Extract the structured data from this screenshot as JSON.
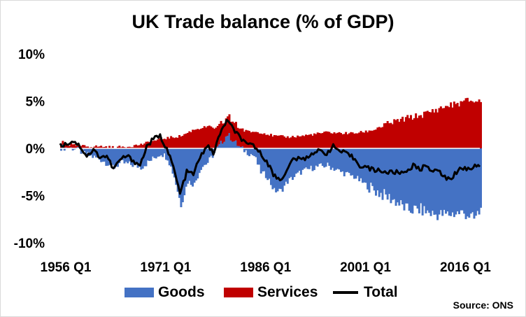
{
  "chart_data": {
    "type": "bar+line",
    "title": "UK Trade balance (% of GDP)",
    "source": "Source: ONS",
    "ylim": [
      -10,
      10
    ],
    "y_ticks": [
      10,
      5,
      0,
      -5,
      -10
    ],
    "y_tick_labels": [
      "10%",
      "5%",
      "0%",
      "-5%",
      "-10%"
    ],
    "x_range": [
      1956,
      2019
    ],
    "x_ticks": [
      1956,
      1971,
      1986,
      2001,
      2016
    ],
    "x_tick_labels": [
      "1956 Q1",
      "1971 Q1",
      "1986 Q1",
      "2001 Q1",
      "2016 Q1"
    ],
    "colors": {
      "goods": "#4472C4",
      "services": "#C00000",
      "total": "#000000",
      "zero_line": "#ffffff"
    },
    "series": [
      {
        "name": "Goods",
        "kind": "bar",
        "color": "#4472C4",
        "x": [
          1956,
          1958,
          1960,
          1962,
          1964,
          1965,
          1967,
          1968,
          1970,
          1971,
          1972,
          1973,
          1974,
          1975,
          1976,
          1977,
          1978,
          1980,
          1981,
          1983,
          1985,
          1986,
          1987,
          1988,
          1989,
          1990,
          1992,
          1994,
          1996,
          1998,
          2000,
          2002,
          2004,
          2006,
          2008,
          2010,
          2012,
          2014,
          2016,
          2017,
          2018,
          2019
        ],
        "values": [
          0.1,
          0.0,
          -0.7,
          -1.2,
          -2.0,
          -1.5,
          -1.8,
          -2.0,
          -1.0,
          -0.5,
          -1.0,
          -3.0,
          -6.0,
          -3.5,
          -3.8,
          -2.0,
          -1.5,
          0.5,
          1.5,
          0.0,
          -0.8,
          -2.5,
          -3.0,
          -4.5,
          -4.5,
          -3.5,
          -2.5,
          -2.0,
          -1.8,
          -2.5,
          -3.0,
          -4.0,
          -4.8,
          -5.5,
          -6.5,
          -6.5,
          -7.0,
          -7.0,
          -6.8,
          -7.0,
          -7.5,
          -6.5
        ]
      },
      {
        "name": "Services",
        "kind": "bar",
        "color": "#C00000",
        "x": [
          1956,
          1958,
          1960,
          1962,
          1964,
          1966,
          1968,
          1970,
          1971,
          1972,
          1974,
          1976,
          1978,
          1980,
          1982,
          1984,
          1986,
          1988,
          1990,
          1992,
          1994,
          1996,
          1998,
          2000,
          2002,
          2004,
          2006,
          2008,
          2010,
          2012,
          2014,
          2016,
          2017,
          2018,
          2019
        ],
        "values": [
          0.4,
          0.3,
          0.2,
          0.2,
          0.1,
          0.2,
          0.4,
          0.8,
          1.0,
          1.1,
          1.3,
          2.0,
          2.3,
          2.0,
          2.0,
          1.8,
          1.7,
          1.3,
          1.2,
          1.3,
          1.5,
          1.7,
          1.6,
          1.6,
          1.8,
          2.3,
          2.8,
          3.2,
          3.5,
          4.0,
          4.5,
          4.8,
          5.1,
          5.0,
          5.0
        ]
      },
      {
        "name": "Total",
        "kind": "line",
        "color": "#000000",
        "x": [
          1956,
          1957,
          1958,
          1959,
          1960,
          1961,
          1962,
          1963,
          1964,
          1965,
          1966,
          1967,
          1968,
          1969,
          1970,
          1971,
          1972,
          1973,
          1974,
          1975,
          1976,
          1977,
          1978,
          1979,
          1980,
          1981,
          1982,
          1983,
          1984,
          1985,
          1986,
          1987,
          1988,
          1989,
          1990,
          1991,
          1992,
          1993,
          1994,
          1995,
          1996,
          1997,
          1998,
          1999,
          2000,
          2001,
          2002,
          2003,
          2004,
          2005,
          2006,
          2007,
          2008,
          2009,
          2010,
          2011,
          2012,
          2013,
          2014,
          2015,
          2016,
          2017,
          2018,
          2019
        ],
        "values": [
          0.3,
          0.5,
          0.8,
          0.2,
          -0.8,
          -0.2,
          -0.9,
          -0.8,
          -2.2,
          -1.2,
          -0.8,
          -1.3,
          -1.8,
          0.2,
          1.0,
          1.3,
          0.0,
          -2.0,
          -4.8,
          -2.5,
          -2.7,
          -1.0,
          0.3,
          -0.5,
          1.5,
          3.0,
          2.0,
          1.2,
          0.3,
          0.4,
          -0.5,
          -1.3,
          -2.8,
          -3.3,
          -2.5,
          -1.0,
          -1.2,
          -1.0,
          -0.4,
          -0.3,
          -0.5,
          0.2,
          -0.3,
          -0.6,
          -1.0,
          -1.8,
          -2.0,
          -2.3,
          -2.3,
          -2.6,
          -2.5,
          -2.6,
          -2.4,
          -1.8,
          -2.3,
          -1.7,
          -2.5,
          -2.4,
          -3.3,
          -3.0,
          -2.0,
          -2.2,
          -2.0,
          -1.7
        ]
      }
    ]
  }
}
